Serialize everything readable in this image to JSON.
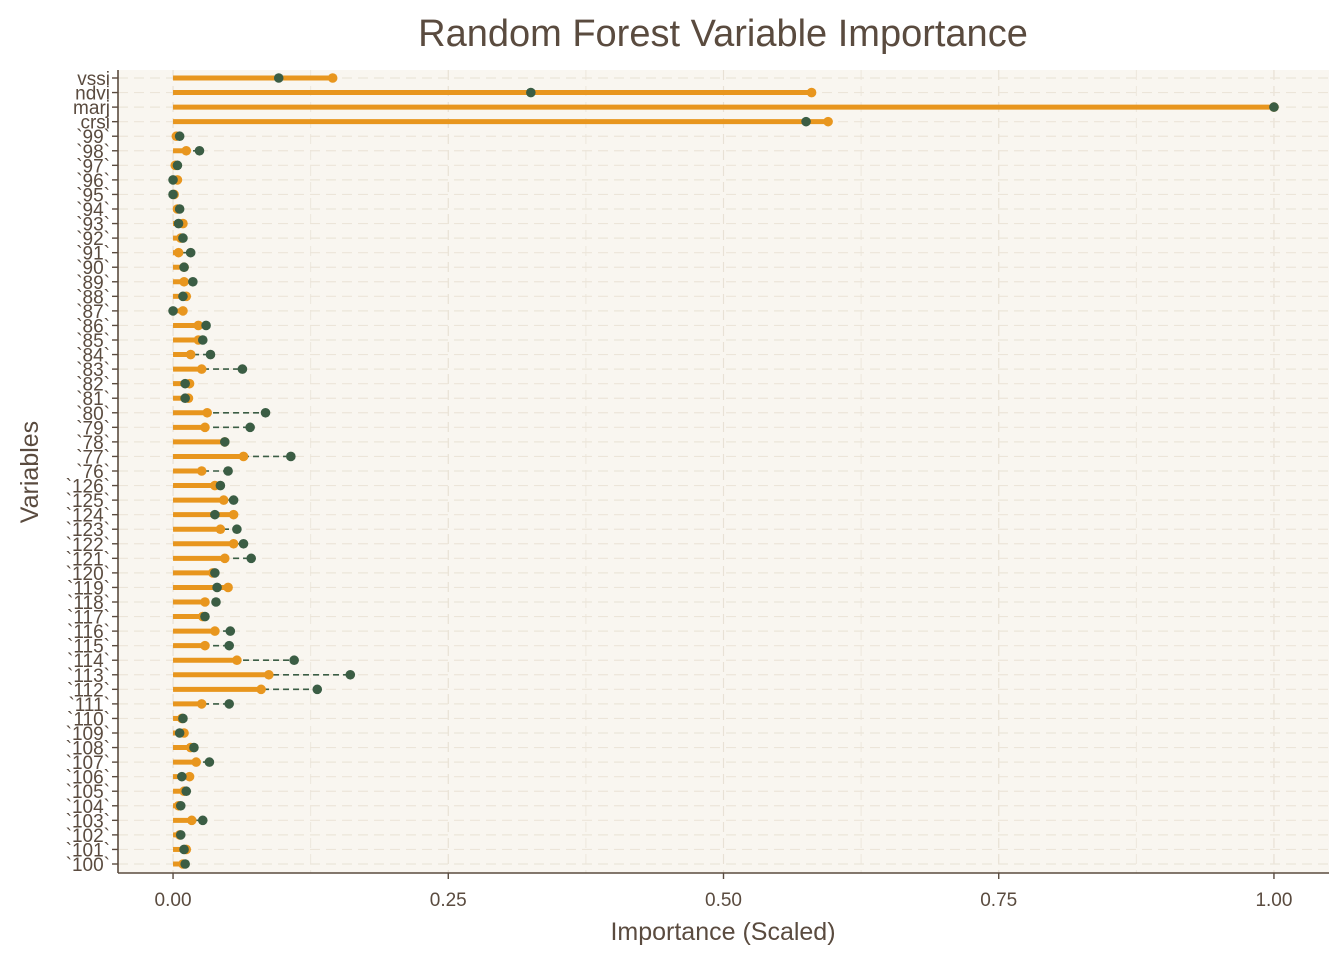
{
  "chart_data": {
    "type": "lollipop",
    "title": "Random Forest Variable Importance",
    "xlabel": "Importance (Scaled)",
    "ylabel": "Variables",
    "xlim": [
      -0.05,
      1.05
    ],
    "x_ticks": [
      0.0,
      0.25,
      0.5,
      0.75,
      1.0
    ],
    "x_tick_labels": [
      "0.00",
      "0.25",
      "0.50",
      "0.75",
      "1.00"
    ],
    "grid": true,
    "background": "#f9f6f0",
    "colors": {
      "series_a": "#e8961e",
      "series_b": "#3b5d44",
      "text": "#5a4b3f"
    },
    "categories": [
      "vssi",
      "ndvi",
      "marj",
      "crsi",
      "`99`",
      "`98`",
      "`97`",
      "`96`",
      "`95`",
      "`94`",
      "`93`",
      "`92`",
      "`91`",
      "`90`",
      "`89`",
      "`88`",
      "`87`",
      "`86`",
      "`85`",
      "`84`",
      "`83`",
      "`82`",
      "`81`",
      "`80`",
      "`79`",
      "`78`",
      "`77`",
      "`76`",
      "`126`",
      "`125`",
      "`124`",
      "`123`",
      "`122`",
      "`121`",
      "`120`",
      "`119`",
      "`118`",
      "`117`",
      "`116`",
      "`115`",
      "`114`",
      "`113`",
      "`112`",
      "`111`",
      "`110`",
      "`109`",
      "`108`",
      "`107`",
      "`106`",
      "`105`",
      "`104`",
      "`103`",
      "`102`",
      "`101`",
      "`100`"
    ],
    "series": [
      {
        "values": [
          0.145,
          0.58,
          1.0,
          0.595,
          0.003,
          0.012,
          0.002,
          0.004,
          0.001,
          0.004,
          0.009,
          0.007,
          0.005,
          0.01,
          0.01,
          0.012,
          0.009,
          0.023,
          0.023,
          0.016,
          0.026,
          0.015,
          0.014,
          0.031,
          0.029,
          0.047,
          0.064,
          0.026,
          0.038,
          0.046,
          0.055,
          0.043,
          0.055,
          0.047,
          0.036,
          0.05,
          0.029,
          0.027,
          0.038,
          0.029,
          0.058,
          0.087,
          0.08,
          0.026,
          0.008,
          0.01,
          0.016,
          0.021,
          0.015,
          0.01,
          0.005,
          0.017,
          0.006,
          0.012,
          0.009
        ]
      },
      {
        "values": [
          0.096,
          0.325,
          1.0,
          0.575,
          0.006,
          0.024,
          0.004,
          0.0,
          0.0,
          0.006,
          0.005,
          0.009,
          0.016,
          0.01,
          0.018,
          0.009,
          0.0,
          0.03,
          0.027,
          0.034,
          0.063,
          0.011,
          0.011,
          0.084,
          0.07,
          0.047,
          0.107,
          0.05,
          0.043,
          0.055,
          0.038,
          0.058,
          0.064,
          0.071,
          0.038,
          0.04,
          0.039,
          0.029,
          0.052,
          0.051,
          0.11,
          0.161,
          0.131,
          0.051,
          0.009,
          0.006,
          0.019,
          0.033,
          0.008,
          0.012,
          0.007,
          0.027,
          0.007,
          0.01,
          0.011
        ]
      }
    ]
  }
}
